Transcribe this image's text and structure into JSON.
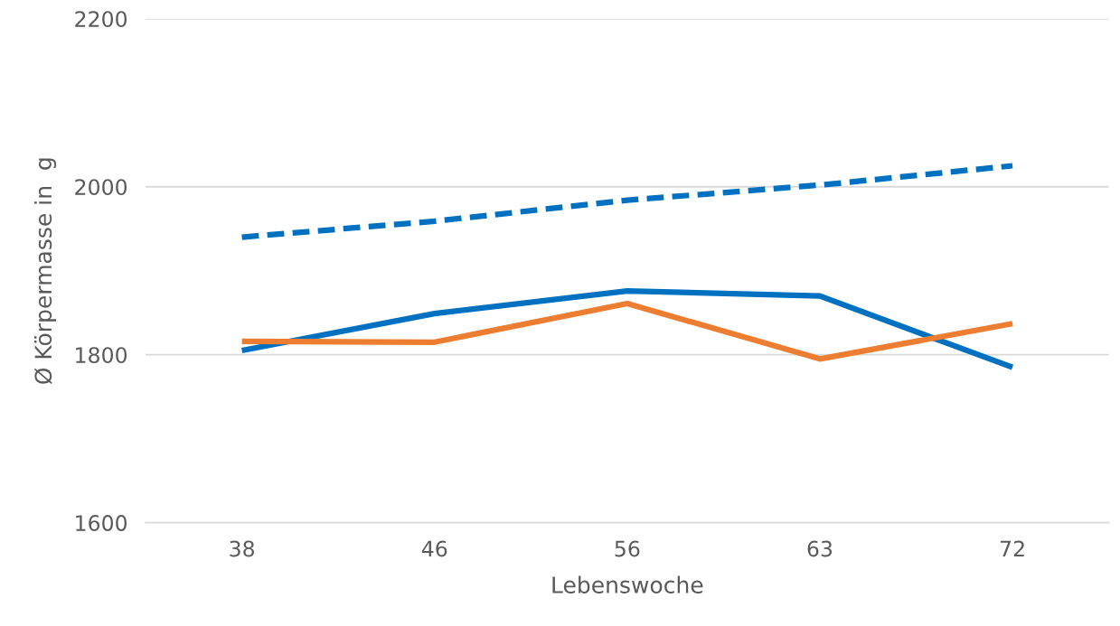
{
  "chart_data": {
    "type": "line",
    "xlabel": "Lebenswoche",
    "ylabel": "Ø Körpermasse in  g",
    "categories": [
      "38",
      "46",
      "56",
      "63",
      "72"
    ],
    "series": [
      {
        "color": "#0070c0",
        "line_style": "dashed",
        "values": [
          1940,
          1959,
          1984,
          2002,
          2025
        ]
      },
      {
        "color": "#0070c0",
        "line_style": "solid",
        "values": [
          1805,
          1849,
          1876,
          1870,
          1785
        ]
      },
      {
        "color": "#ed7d31",
        "line_style": "solid",
        "values": [
          1816,
          1815,
          1861,
          1795,
          1837
        ]
      }
    ],
    "ylim": [
      1600,
      2200
    ],
    "yticks": [
      1600,
      1800,
      2000,
      2200
    ],
    "grid": "y"
  }
}
